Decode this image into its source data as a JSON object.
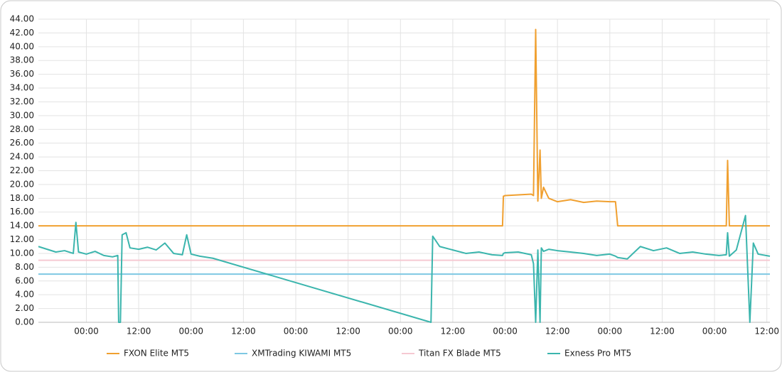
{
  "chart_data": {
    "type": "line",
    "x": [
      -11,
      -9,
      -7,
      -5,
      -3,
      -2.4,
      -1.8,
      0,
      2,
      4,
      6,
      7.2,
      7.4,
      7.8,
      8.2,
      9.1,
      10,
      12,
      14,
      16,
      18,
      20,
      22,
      23,
      24,
      26,
      29,
      79,
      79.4,
      81,
      84,
      87,
      90,
      93,
      95.4,
      95.6,
      96,
      99,
      102,
      102.5,
      103,
      103.5,
      104,
      104.3,
      104.8,
      106,
      108,
      111,
      114,
      117,
      120,
      121.3,
      121.8,
      124,
      127,
      130,
      133,
      136,
      139,
      142,
      145,
      146.7,
      147,
      147.4,
      149,
      151.1,
      152.1,
      152.9,
      154,
      156.7
    ],
    "series": [
      {
        "name": "FXON Elite MT5",
        "color": "#f0a030",
        "values": [
          14,
          14,
          14,
          14,
          14,
          14,
          14,
          14,
          14,
          14,
          14,
          14,
          14,
          14,
          14,
          14,
          14,
          14,
          14,
          14,
          14,
          14,
          14,
          14,
          14,
          14,
          14,
          14,
          14,
          14,
          14,
          14,
          14,
          14,
          14,
          18.3,
          18.4,
          18.5,
          18.6,
          18.4,
          42.5,
          17.6,
          25,
          18,
          19.6,
          18,
          17.5,
          17.8,
          17.4,
          17.6,
          17.5,
          17.5,
          14,
          14,
          14,
          14,
          14,
          14,
          14,
          14,
          14,
          14,
          23.5,
          14,
          14,
          14,
          14,
          14,
          14,
          14
        ]
      },
      {
        "name": "XMTrading KIWAMI MT5",
        "color": "#7ec8e3",
        "values": [
          7,
          7,
          7,
          7,
          7,
          7,
          7,
          7,
          7,
          7,
          7,
          7,
          7,
          7,
          7,
          7,
          7,
          7,
          7,
          7,
          7,
          7,
          7,
          7,
          7,
          7,
          7,
          7,
          7,
          7,
          7,
          7,
          7,
          7,
          7,
          7,
          7,
          7,
          7,
          7,
          7,
          7,
          7,
          7,
          7,
          7,
          7,
          7,
          7,
          7,
          7,
          7,
          7,
          7,
          7,
          7,
          7,
          7,
          7,
          7,
          7,
          7,
          7,
          7,
          7,
          7,
          7,
          7,
          7,
          7
        ]
      },
      {
        "name": "Titan FX Blade MT5",
        "color": "#f6c9d2",
        "values": [
          9,
          9,
          9,
          9,
          9,
          9,
          9,
          9,
          9,
          9,
          9,
          9,
          9,
          9,
          9,
          9,
          9,
          9,
          9,
          9,
          9,
          9,
          9,
          9,
          9,
          9,
          9,
          9,
          9,
          9,
          9,
          9,
          9,
          9,
          9,
          9,
          9,
          9,
          9,
          9,
          9,
          9,
          9,
          9,
          9,
          9,
          9,
          9,
          9,
          9,
          9,
          9,
          9,
          9,
          9,
          9,
          9,
          9,
          9,
          9,
          9,
          9,
          9,
          9,
          9,
          9,
          9,
          9,
          9,
          9
        ]
      },
      {
        "name": "Exness Pro MT5",
        "color": "#3bb5ad",
        "values": [
          11.0,
          10.6,
          10.2,
          10.4,
          10.0,
          14.5,
          10.2,
          9.9,
          10.3,
          9.7,
          9.5,
          9.7,
          0,
          0,
          12.7,
          13.0,
          10.8,
          10.6,
          10.9,
          10.5,
          11.5,
          10.0,
          9.8,
          12.7,
          9.9,
          9.6,
          9.3,
          0,
          12.5,
          11.0,
          10.5,
          10.0,
          10.2,
          9.8,
          9.7,
          10.0,
          10.1,
          10.2,
          9.8,
          8.5,
          0,
          10.5,
          0,
          10.8,
          10.3,
          10.6,
          10.4,
          10.2,
          10.0,
          9.7,
          9.9,
          9.6,
          9.4,
          9.2,
          11.0,
          10.4,
          10.8,
          10.0,
          10.2,
          9.9,
          9.7,
          9.8,
          13.0,
          9.6,
          10.5,
          15.5,
          0,
          11.5,
          9.9,
          9.6
        ]
      }
    ],
    "xlim": [
      -11,
      156.7
    ],
    "xticks": [
      {
        "value": 0,
        "label": "00:00"
      },
      {
        "value": 12,
        "label": "12:00"
      },
      {
        "value": 24,
        "label": "00:00"
      },
      {
        "value": 36,
        "label": "12:00"
      },
      {
        "value": 48,
        "label": "00:00"
      },
      {
        "value": 60,
        "label": "12:00"
      },
      {
        "value": 72,
        "label": "00:00"
      },
      {
        "value": 84,
        "label": "12:00"
      },
      {
        "value": 96,
        "label": "00:00"
      },
      {
        "value": 108,
        "label": "12:00"
      },
      {
        "value": 120,
        "label": "00:00"
      },
      {
        "value": 132,
        "label": "12:00"
      },
      {
        "value": 144,
        "label": "00:00"
      },
      {
        "value": 156,
        "label": "12:00"
      }
    ],
    "ylim": [
      0,
      44
    ],
    "yticks": [
      {
        "value": 0,
        "label": "0.00"
      },
      {
        "value": 2,
        "label": "2.00"
      },
      {
        "value": 4,
        "label": "4.00"
      },
      {
        "value": 6,
        "label": "6.00"
      },
      {
        "value": 8,
        "label": "8.00"
      },
      {
        "value": 10,
        "label": "10.00"
      },
      {
        "value": 12,
        "label": "12.00"
      },
      {
        "value": 14,
        "label": "14.00"
      },
      {
        "value": 16,
        "label": "16.00"
      },
      {
        "value": 18,
        "label": "18.00"
      },
      {
        "value": 20,
        "label": "20.00"
      },
      {
        "value": 22,
        "label": "22.00"
      },
      {
        "value": 24,
        "label": "24.00"
      },
      {
        "value": 26,
        "label": "26.00"
      },
      {
        "value": 28,
        "label": "28.00"
      },
      {
        "value": 30,
        "label": "30.00"
      },
      {
        "value": 32,
        "label": "32.00"
      },
      {
        "value": 34,
        "label": "34.00"
      },
      {
        "value": 36,
        "label": "36.00"
      },
      {
        "value": 38,
        "label": "38.00"
      },
      {
        "value": 40,
        "label": "40.00"
      },
      {
        "value": 42,
        "label": "42.00"
      },
      {
        "value": 44,
        "label": "44.00"
      }
    ],
    "grid": true,
    "legend": "bottom"
  }
}
